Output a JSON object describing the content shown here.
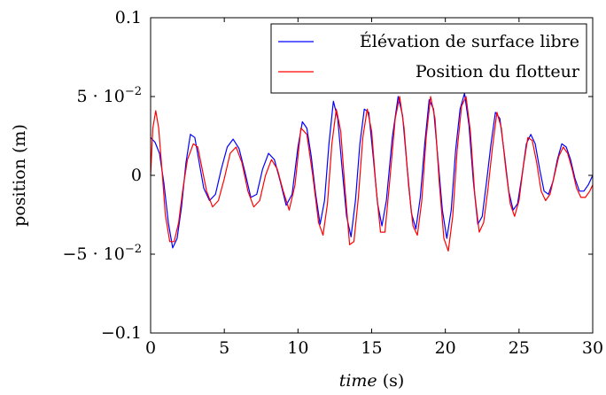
{
  "chart_data": {
    "type": "line",
    "title": "",
    "xlabel_italic": "time",
    "xlabel_unit": " (s)",
    "ylabel": "position (m)",
    "xlim": [
      0,
      30
    ],
    "ylim": [
      -0.1,
      0.1
    ],
    "grid": false,
    "legend_position": "top-right",
    "x_ticks": [
      {
        "value": 0,
        "label": "0"
      },
      {
        "value": 5,
        "label": "5"
      },
      {
        "value": 10,
        "label": "10"
      },
      {
        "value": 15,
        "label": "15"
      },
      {
        "value": 20,
        "label": "20"
      },
      {
        "value": 25,
        "label": "25"
      },
      {
        "value": 30,
        "label": "30"
      }
    ],
    "y_ticks": [
      {
        "value": -0.1,
        "label": "−0.1"
      },
      {
        "value": -0.05,
        "label": "−5 · 10"
      },
      {
        "value": 0,
        "label": "0"
      },
      {
        "value": 0.05,
        "label": "5 · 10"
      },
      {
        "value": 0.1,
        "label": "0.1"
      }
    ],
    "y_tick_exponent": "−2",
    "series": [
      {
        "name": "Élévation de surface libre",
        "color": "#0000ff",
        "points": [
          [
            0,
            0.024
          ],
          [
            0.3,
            0.021
          ],
          [
            0.6,
            0.014
          ],
          [
            0.9,
            -0.005
          ],
          [
            1.2,
            -0.03
          ],
          [
            1.5,
            -0.046
          ],
          [
            1.8,
            -0.04
          ],
          [
            2.1,
            -0.02
          ],
          [
            2.4,
            0.008
          ],
          [
            2.7,
            0.026
          ],
          [
            3.0,
            0.024
          ],
          [
            3.3,
            0.008
          ],
          [
            3.6,
            -0.008
          ],
          [
            4.0,
            -0.016
          ],
          [
            4.4,
            -0.012
          ],
          [
            4.8,
            0.004
          ],
          [
            5.2,
            0.018
          ],
          [
            5.6,
            0.023
          ],
          [
            6.0,
            0.017
          ],
          [
            6.4,
            0.002
          ],
          [
            6.8,
            -0.014
          ],
          [
            7.2,
            -0.012
          ],
          [
            7.6,
            0.004
          ],
          [
            8.0,
            0.014
          ],
          [
            8.4,
            0.01
          ],
          [
            8.8,
            -0.004
          ],
          [
            9.2,
            -0.019
          ],
          [
            9.6,
            -0.012
          ],
          [
            10.0,
            0.018
          ],
          [
            10.3,
            0.034
          ],
          [
            10.6,
            0.03
          ],
          [
            10.9,
            0.012
          ],
          [
            11.2,
            -0.012
          ],
          [
            11.5,
            -0.031
          ],
          [
            11.8,
            -0.016
          ],
          [
            12.1,
            0.02
          ],
          [
            12.4,
            0.047
          ],
          [
            12.7,
            0.036
          ],
          [
            13.0,
            0.004
          ],
          [
            13.3,
            -0.026
          ],
          [
            13.6,
            -0.039
          ],
          [
            13.9,
            -0.016
          ],
          [
            14.2,
            0.02
          ],
          [
            14.5,
            0.042
          ],
          [
            14.8,
            0.04
          ],
          [
            15.1,
            0.012
          ],
          [
            15.4,
            -0.018
          ],
          [
            15.7,
            -0.032
          ],
          [
            16.0,
            -0.016
          ],
          [
            16.4,
            0.024
          ],
          [
            16.8,
            0.05
          ],
          [
            17.1,
            0.038
          ],
          [
            17.4,
            0.006
          ],
          [
            17.7,
            -0.024
          ],
          [
            18.0,
            -0.034
          ],
          [
            18.3,
            -0.014
          ],
          [
            18.6,
            0.02
          ],
          [
            18.9,
            0.048
          ],
          [
            19.2,
            0.042
          ],
          [
            19.5,
            0.01
          ],
          [
            19.8,
            -0.022
          ],
          [
            20.1,
            -0.04
          ],
          [
            20.4,
            -0.022
          ],
          [
            20.7,
            0.016
          ],
          [
            21.0,
            0.042
          ],
          [
            21.3,
            0.052
          ],
          [
            21.6,
            0.032
          ],
          [
            21.9,
            -0.004
          ],
          [
            22.2,
            -0.031
          ],
          [
            22.5,
            -0.026
          ],
          [
            22.8,
            -0.004
          ],
          [
            23.1,
            0.02
          ],
          [
            23.4,
            0.04
          ],
          [
            23.7,
            0.036
          ],
          [
            24.0,
            0.014
          ],
          [
            24.3,
            -0.01
          ],
          [
            24.6,
            -0.022
          ],
          [
            24.9,
            -0.018
          ],
          [
            25.2,
            0.0
          ],
          [
            25.5,
            0.02
          ],
          [
            25.8,
            0.026
          ],
          [
            26.1,
            0.02
          ],
          [
            26.4,
            0.004
          ],
          [
            26.7,
            -0.01
          ],
          [
            27.0,
            -0.012
          ],
          [
            27.3,
            -0.004
          ],
          [
            27.6,
            0.01
          ],
          [
            27.9,
            0.02
          ],
          [
            28.2,
            0.018
          ],
          [
            28.5,
            0.01
          ],
          [
            28.8,
            -0.002
          ],
          [
            29.1,
            -0.01
          ],
          [
            29.4,
            -0.01
          ],
          [
            29.7,
            -0.006
          ],
          [
            30.0,
            0.0
          ]
        ]
      },
      {
        "name": "Position du flotteur",
        "color": "#ff0000",
        "points": [
          [
            0,
            0.0
          ],
          [
            0.15,
            0.03
          ],
          [
            0.35,
            0.041
          ],
          [
            0.55,
            0.03
          ],
          [
            0.8,
            0.0
          ],
          [
            1.0,
            -0.025
          ],
          [
            1.3,
            -0.042
          ],
          [
            1.6,
            -0.042
          ],
          [
            1.9,
            -0.03
          ],
          [
            2.2,
            -0.008
          ],
          [
            2.5,
            0.01
          ],
          [
            2.9,
            0.02
          ],
          [
            3.2,
            0.018
          ],
          [
            3.5,
            0.004
          ],
          [
            3.8,
            -0.01
          ],
          [
            4.2,
            -0.02
          ],
          [
            4.6,
            -0.016
          ],
          [
            5.0,
            -0.002
          ],
          [
            5.4,
            0.014
          ],
          [
            5.8,
            0.018
          ],
          [
            6.2,
            0.008
          ],
          [
            6.6,
            -0.01
          ],
          [
            7.0,
            -0.02
          ],
          [
            7.4,
            -0.016
          ],
          [
            7.8,
            0.0
          ],
          [
            8.2,
            0.01
          ],
          [
            8.6,
            0.004
          ],
          [
            9.0,
            -0.01
          ],
          [
            9.4,
            -0.022
          ],
          [
            9.8,
            -0.006
          ],
          [
            10.2,
            0.03
          ],
          [
            10.6,
            0.026
          ],
          [
            11.0,
            0.0
          ],
          [
            11.4,
            -0.03
          ],
          [
            11.7,
            -0.038
          ],
          [
            12.0,
            -0.018
          ],
          [
            12.3,
            0.02
          ],
          [
            12.6,
            0.042
          ],
          [
            12.9,
            0.028
          ],
          [
            13.2,
            -0.01
          ],
          [
            13.5,
            -0.044
          ],
          [
            13.8,
            -0.042
          ],
          [
            14.1,
            -0.014
          ],
          [
            14.4,
            0.024
          ],
          [
            14.7,
            0.042
          ],
          [
            15.0,
            0.028
          ],
          [
            15.3,
            -0.008
          ],
          [
            15.6,
            -0.036
          ],
          [
            15.9,
            -0.036
          ],
          [
            16.2,
            -0.006
          ],
          [
            16.6,
            0.036
          ],
          [
            16.9,
            0.05
          ],
          [
            17.2,
            0.03
          ],
          [
            17.5,
            -0.006
          ],
          [
            17.8,
            -0.032
          ],
          [
            18.1,
            -0.038
          ],
          [
            18.4,
            -0.016
          ],
          [
            18.7,
            0.024
          ],
          [
            19.0,
            0.05
          ],
          [
            19.3,
            0.036
          ],
          [
            19.6,
            -0.006
          ],
          [
            19.9,
            -0.04
          ],
          [
            20.2,
            -0.048
          ],
          [
            20.5,
            -0.026
          ],
          [
            20.8,
            0.016
          ],
          [
            21.1,
            0.044
          ],
          [
            21.4,
            0.05
          ],
          [
            21.7,
            0.028
          ],
          [
            22.0,
            -0.012
          ],
          [
            22.3,
            -0.036
          ],
          [
            22.6,
            -0.03
          ],
          [
            22.9,
            -0.008
          ],
          [
            23.2,
            0.018
          ],
          [
            23.5,
            0.04
          ],
          [
            23.8,
            0.03
          ],
          [
            24.1,
            0.004
          ],
          [
            24.4,
            -0.018
          ],
          [
            24.7,
            -0.026
          ],
          [
            25.0,
            -0.016
          ],
          [
            25.3,
            0.006
          ],
          [
            25.6,
            0.024
          ],
          [
            25.9,
            0.022
          ],
          [
            26.2,
            0.008
          ],
          [
            26.5,
            -0.01
          ],
          [
            26.8,
            -0.016
          ],
          [
            27.1,
            -0.012
          ],
          [
            27.4,
            0.0
          ],
          [
            27.7,
            0.012
          ],
          [
            28.0,
            0.018
          ],
          [
            28.3,
            0.014
          ],
          [
            28.6,
            0.004
          ],
          [
            28.9,
            -0.008
          ],
          [
            29.2,
            -0.014
          ],
          [
            29.5,
            -0.014
          ],
          [
            29.8,
            -0.01
          ],
          [
            30.0,
            -0.006
          ]
        ]
      }
    ]
  }
}
